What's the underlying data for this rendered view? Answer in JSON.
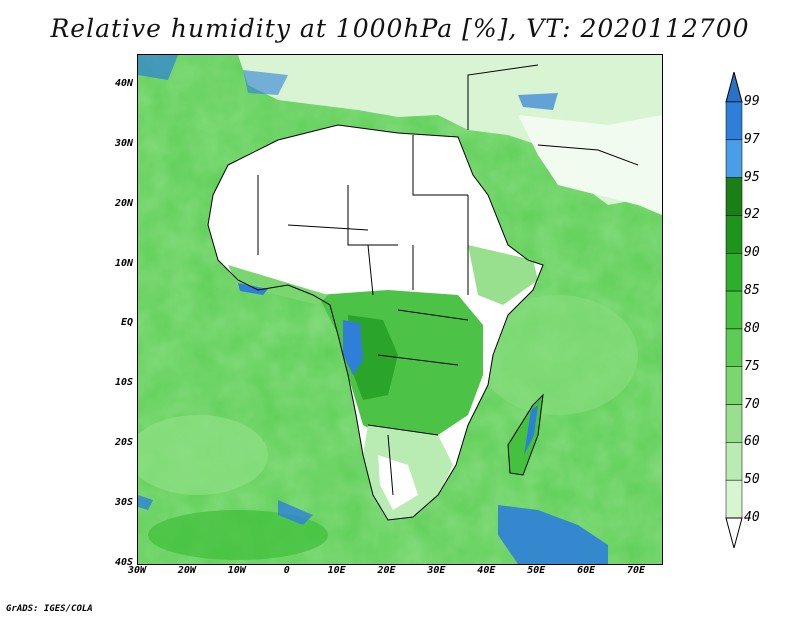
{
  "title": "Relative humidity at 1000hPa [%], VT: 2020112700",
  "credit": "GrADS: IGES/COLA",
  "map": {
    "lon_range": [
      -30,
      75
    ],
    "lat_range": [
      -40,
      45
    ],
    "lat_ticks": [
      {
        "value": 40,
        "label": "40N"
      },
      {
        "value": 30,
        "label": "30N"
      },
      {
        "value": 20,
        "label": "20N"
      },
      {
        "value": 10,
        "label": "10N"
      },
      {
        "value": 0,
        "label": "EQ"
      },
      {
        "value": -10,
        "label": "10S"
      },
      {
        "value": -20,
        "label": "20S"
      },
      {
        "value": -30,
        "label": "30S"
      },
      {
        "value": -40,
        "label": "40S"
      }
    ],
    "lon_ticks": [
      {
        "value": -30,
        "label": "30W"
      },
      {
        "value": -20,
        "label": "20W"
      },
      {
        "value": -10,
        "label": "10W"
      },
      {
        "value": 0,
        "label": "0"
      },
      {
        "value": 10,
        "label": "10E"
      },
      {
        "value": 20,
        "label": "20E"
      },
      {
        "value": 30,
        "label": "30E"
      },
      {
        "value": 40,
        "label": "40E"
      },
      {
        "value": 50,
        "label": "50E"
      },
      {
        "value": 60,
        "label": "60E"
      },
      {
        "value": 70,
        "label": "70E"
      }
    ]
  },
  "colorbar": {
    "levels": [
      "40",
      "50",
      "60",
      "70",
      "75",
      "80",
      "85",
      "90",
      "92",
      "95",
      "97",
      "99"
    ],
    "colors": [
      "#f0fcee",
      "#d6f5d0",
      "#b8ecb2",
      "#98e08e",
      "#7ad66f",
      "#5dcc55",
      "#44c13e",
      "#2eae2b",
      "#1f941d",
      "#1a7f17",
      "#4a9ee8",
      "#2f7fd8",
      "#1d60c2"
    ],
    "low_color": "#ffffff",
    "high_color": "#2a72c8"
  }
}
